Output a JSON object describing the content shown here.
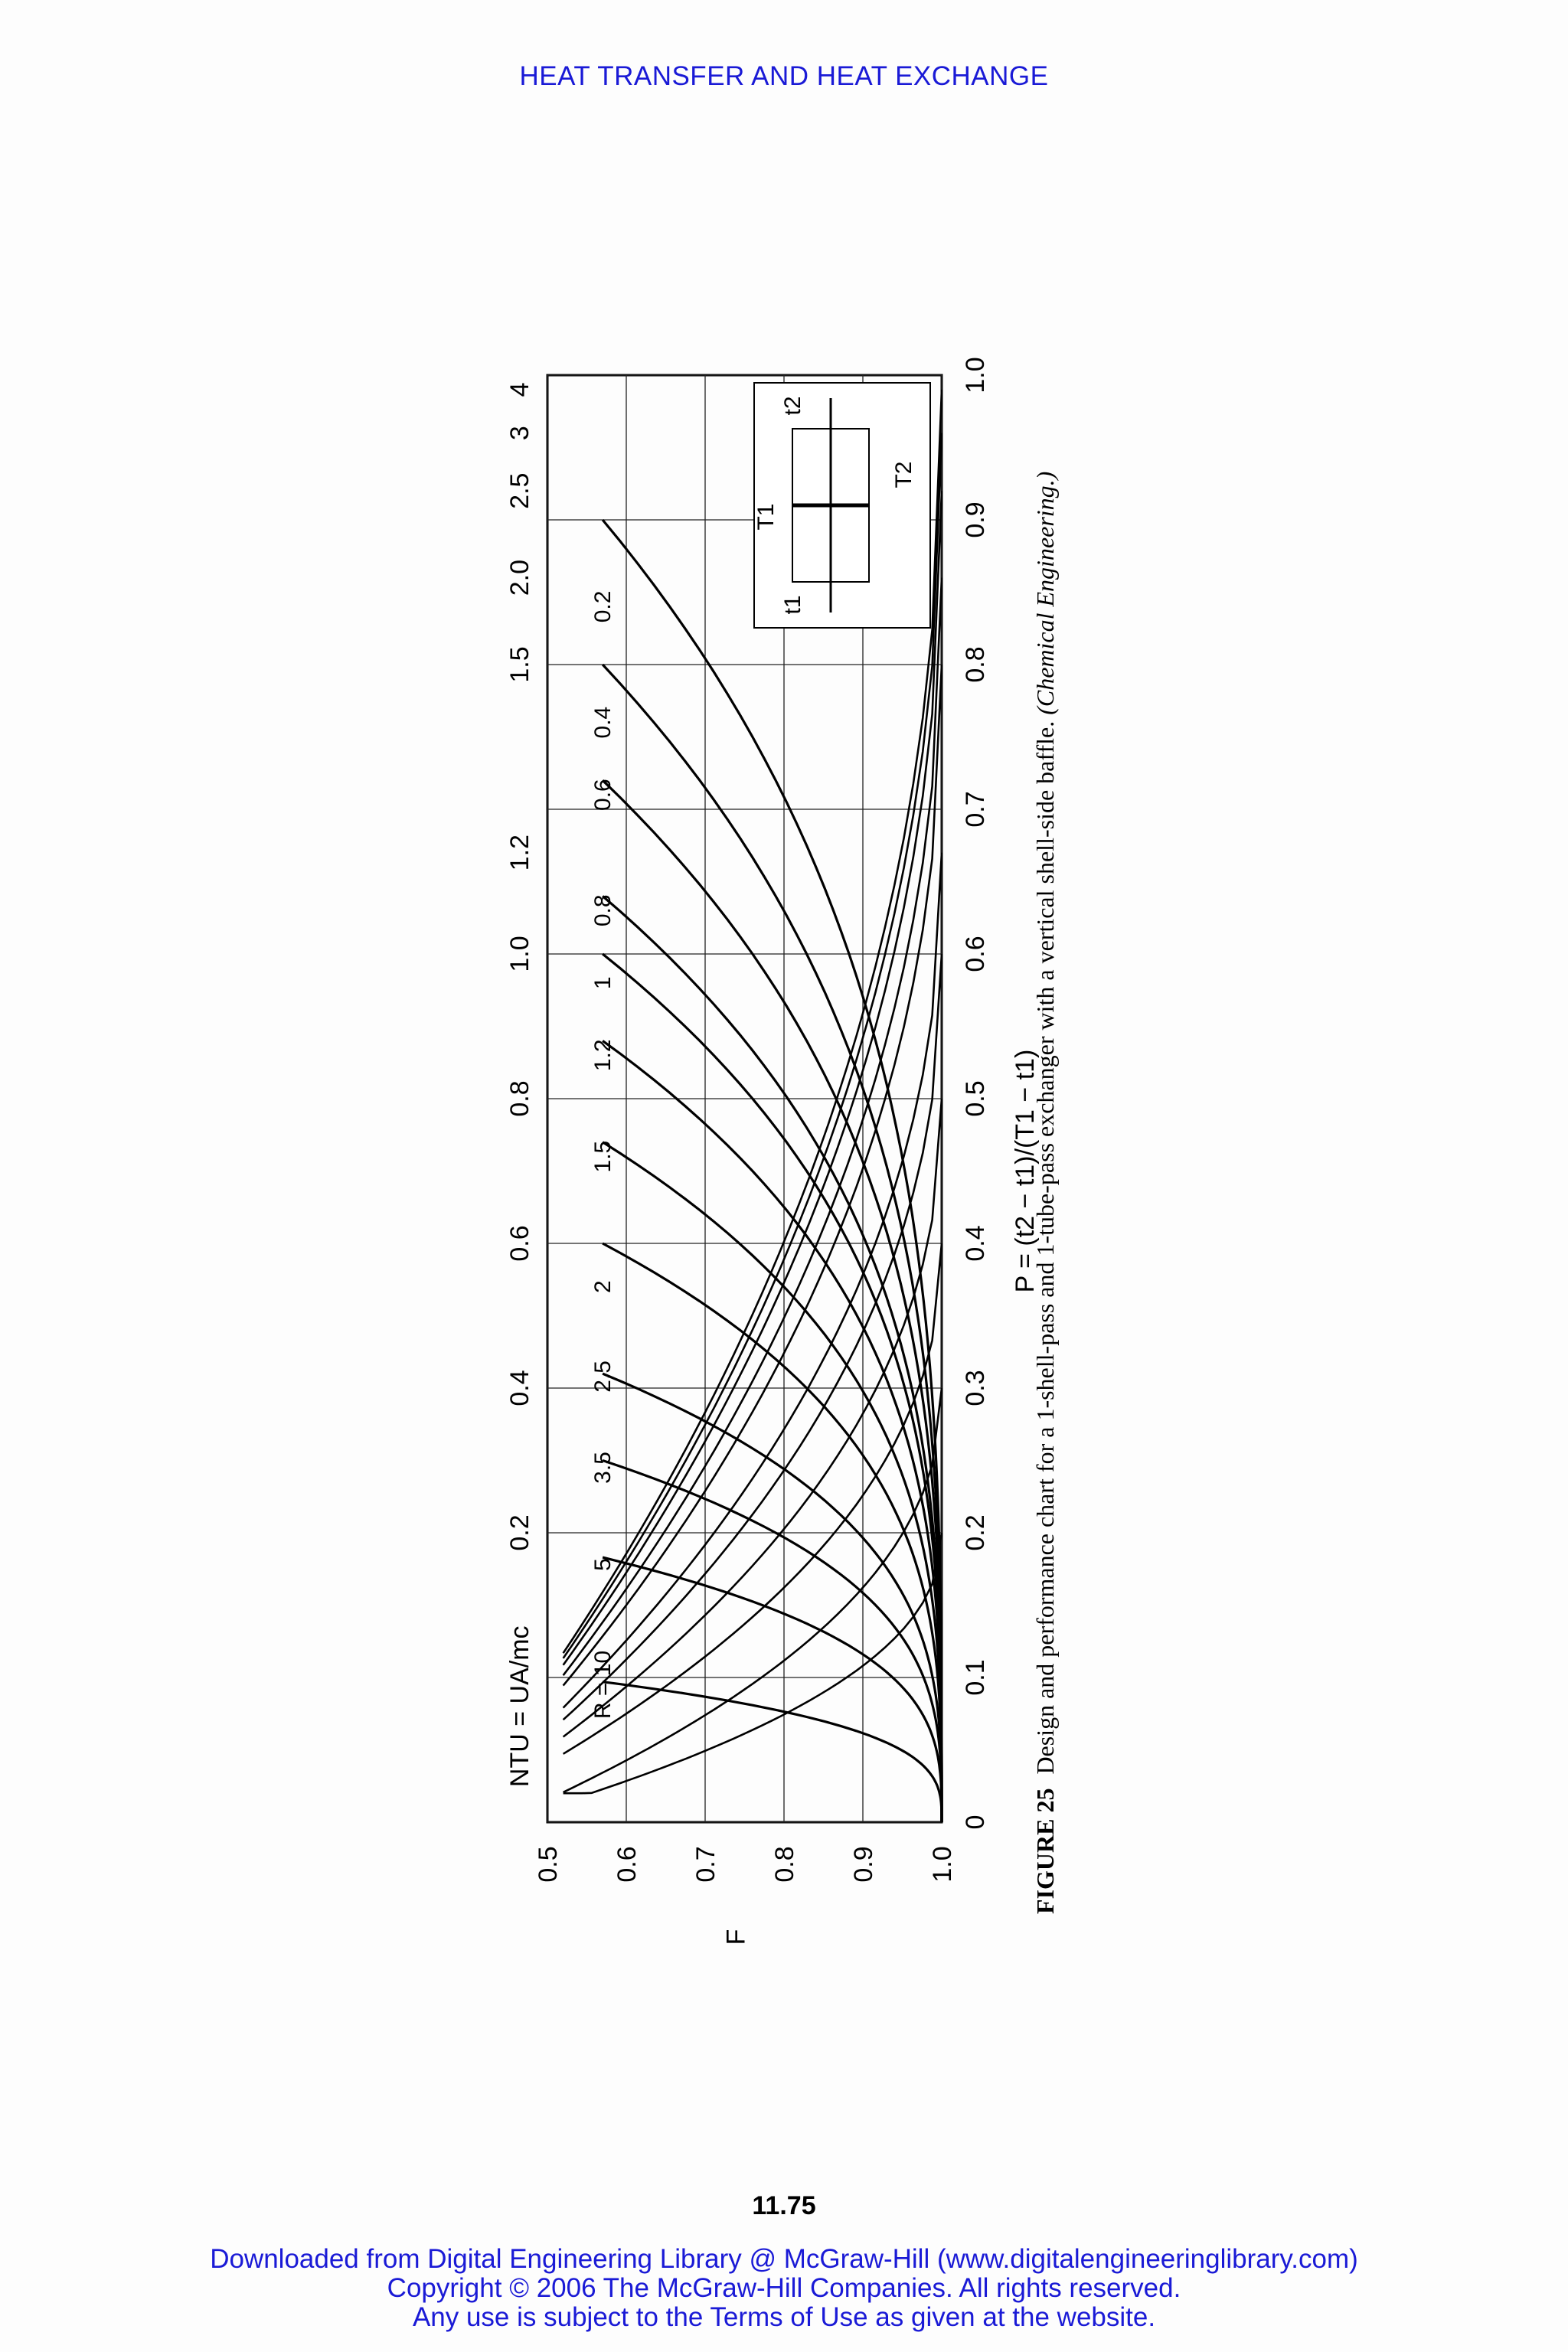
{
  "header": {
    "running_head": "HEAT TRANSFER AND HEAT EXCHANGE"
  },
  "figure": {
    "label": "FIGURE 25",
    "caption": "Design and performance chart for a 1-shell-pass and 1-tube-pass exchanger with a vertical shell-side baffle.",
    "source": "(Chemical Engineering.)",
    "inset_labels": {
      "T1": "T1",
      "T2": "T2",
      "t1": "t1",
      "t2": "t2"
    }
  },
  "chart_data": {
    "type": "line",
    "title": "",
    "xlabel": "P = (t2 − t1)/(T1 − t1)",
    "ylabel": "F",
    "x_ticks": [
      "0",
      "0.1",
      "0.2",
      "0.3",
      "0.4",
      "0.5",
      "0.6",
      "0.7",
      "0.8",
      "0.9",
      "1.0"
    ],
    "y_ticks": [
      "0.5",
      "0.6",
      "0.7",
      "0.8",
      "0.9",
      "1.0"
    ],
    "secondary_axis_label": "NTU = UA/mc",
    "secondary_ticks": [
      {
        "label": "0.2",
        "p": 0.2
      },
      {
        "label": "0.4",
        "p": 0.3
      },
      {
        "label": "0.6",
        "p": 0.4
      },
      {
        "label": "0.8",
        "p": 0.5
      },
      {
        "label": "1.0",
        "p": 0.6
      },
      {
        "label": "1.2",
        "p": 0.67
      },
      {
        "label": "1.5",
        "p": 0.8
      },
      {
        "label": "2.0",
        "p": 0.86
      },
      {
        "label": "2.5",
        "p": 0.92
      },
      {
        "label": "3",
        "p": 0.96
      },
      {
        "label": "4",
        "p": 0.99
      }
    ],
    "xlim": [
      0,
      1.0
    ],
    "ylim": [
      0.5,
      1.0
    ],
    "grid": true,
    "r_curves": [
      {
        "name": "R = 10",
        "label": "R = 10",
        "p_max": 0.097,
        "label_p": 0.095
      },
      {
        "name": "5",
        "label": "5",
        "p_max": 0.183,
        "label_p": 0.178
      },
      {
        "name": "3.5",
        "label": "3.5",
        "p_max": 0.25,
        "label_p": 0.245
      },
      {
        "name": "2.5",
        "label": "2.5",
        "p_max": 0.31,
        "label_p": 0.308
      },
      {
        "name": "2",
        "label": "2",
        "p_max": 0.4,
        "label_p": 0.37
      },
      {
        "name": "1.5",
        "label": "1.5",
        "p_max": 0.47,
        "label_p": 0.46
      },
      {
        "name": "1.2",
        "label": "1.2",
        "p_max": 0.54,
        "label_p": 0.53
      },
      {
        "name": "1",
        "label": "1",
        "p_max": 0.6,
        "label_p": 0.58
      },
      {
        "name": "0.8",
        "label": "0.8",
        "p_max": 0.64,
        "label_p": 0.63
      },
      {
        "name": "0.6",
        "label": "0.6",
        "p_max": 0.72,
        "label_p": 0.71
      },
      {
        "name": "0.4",
        "label": "0.4",
        "p_max": 0.8,
        "label_p": 0.76
      },
      {
        "name": "0.2",
        "label": "0.2",
        "p_max": 0.9,
        "label_p": 0.84
      }
    ]
  },
  "footer": {
    "page_number": "11.75",
    "line1": "Downloaded from Digital Engineering Library @ McGraw-Hill (www.digitalengineeringlibrary.com)",
    "line2": "Copyright © 2006 The McGraw-Hill Companies. All rights reserved.",
    "line3": "Any use is subject to the Terms of Use as given at the website."
  }
}
